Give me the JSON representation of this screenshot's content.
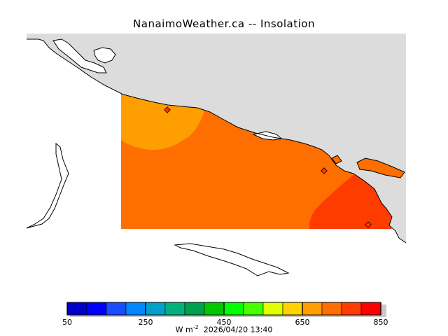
{
  "title": "NanaimoWeather.ca -- Insolation",
  "colorbar": {
    "tick_labels": [
      "50",
      "250",
      "450",
      "650",
      "850"
    ],
    "colors": [
      "#0a0a7a",
      "#0000c8",
      "#0000ff",
      "#1a4cff",
      "#0087ff",
      "#00a0c8",
      "#00b27a",
      "#00a050",
      "#00c800",
      "#00ff00",
      "#47ff00",
      "#e0ff00",
      "#ffd200",
      "#ff9e00",
      "#ff6e00",
      "#ff3c00",
      "#ff0000"
    ],
    "units_prefix": "W m",
    "units_exponent": "-2",
    "timestamp": "2026/04/20 13:40"
  },
  "map": {
    "field_colors": {
      "low": "#ff9e00",
      "mid": "#ff6e00",
      "high": "#ff3c00"
    },
    "land_color": "#dcdcdc",
    "station_marker_color": "#ff3c00"
  }
}
